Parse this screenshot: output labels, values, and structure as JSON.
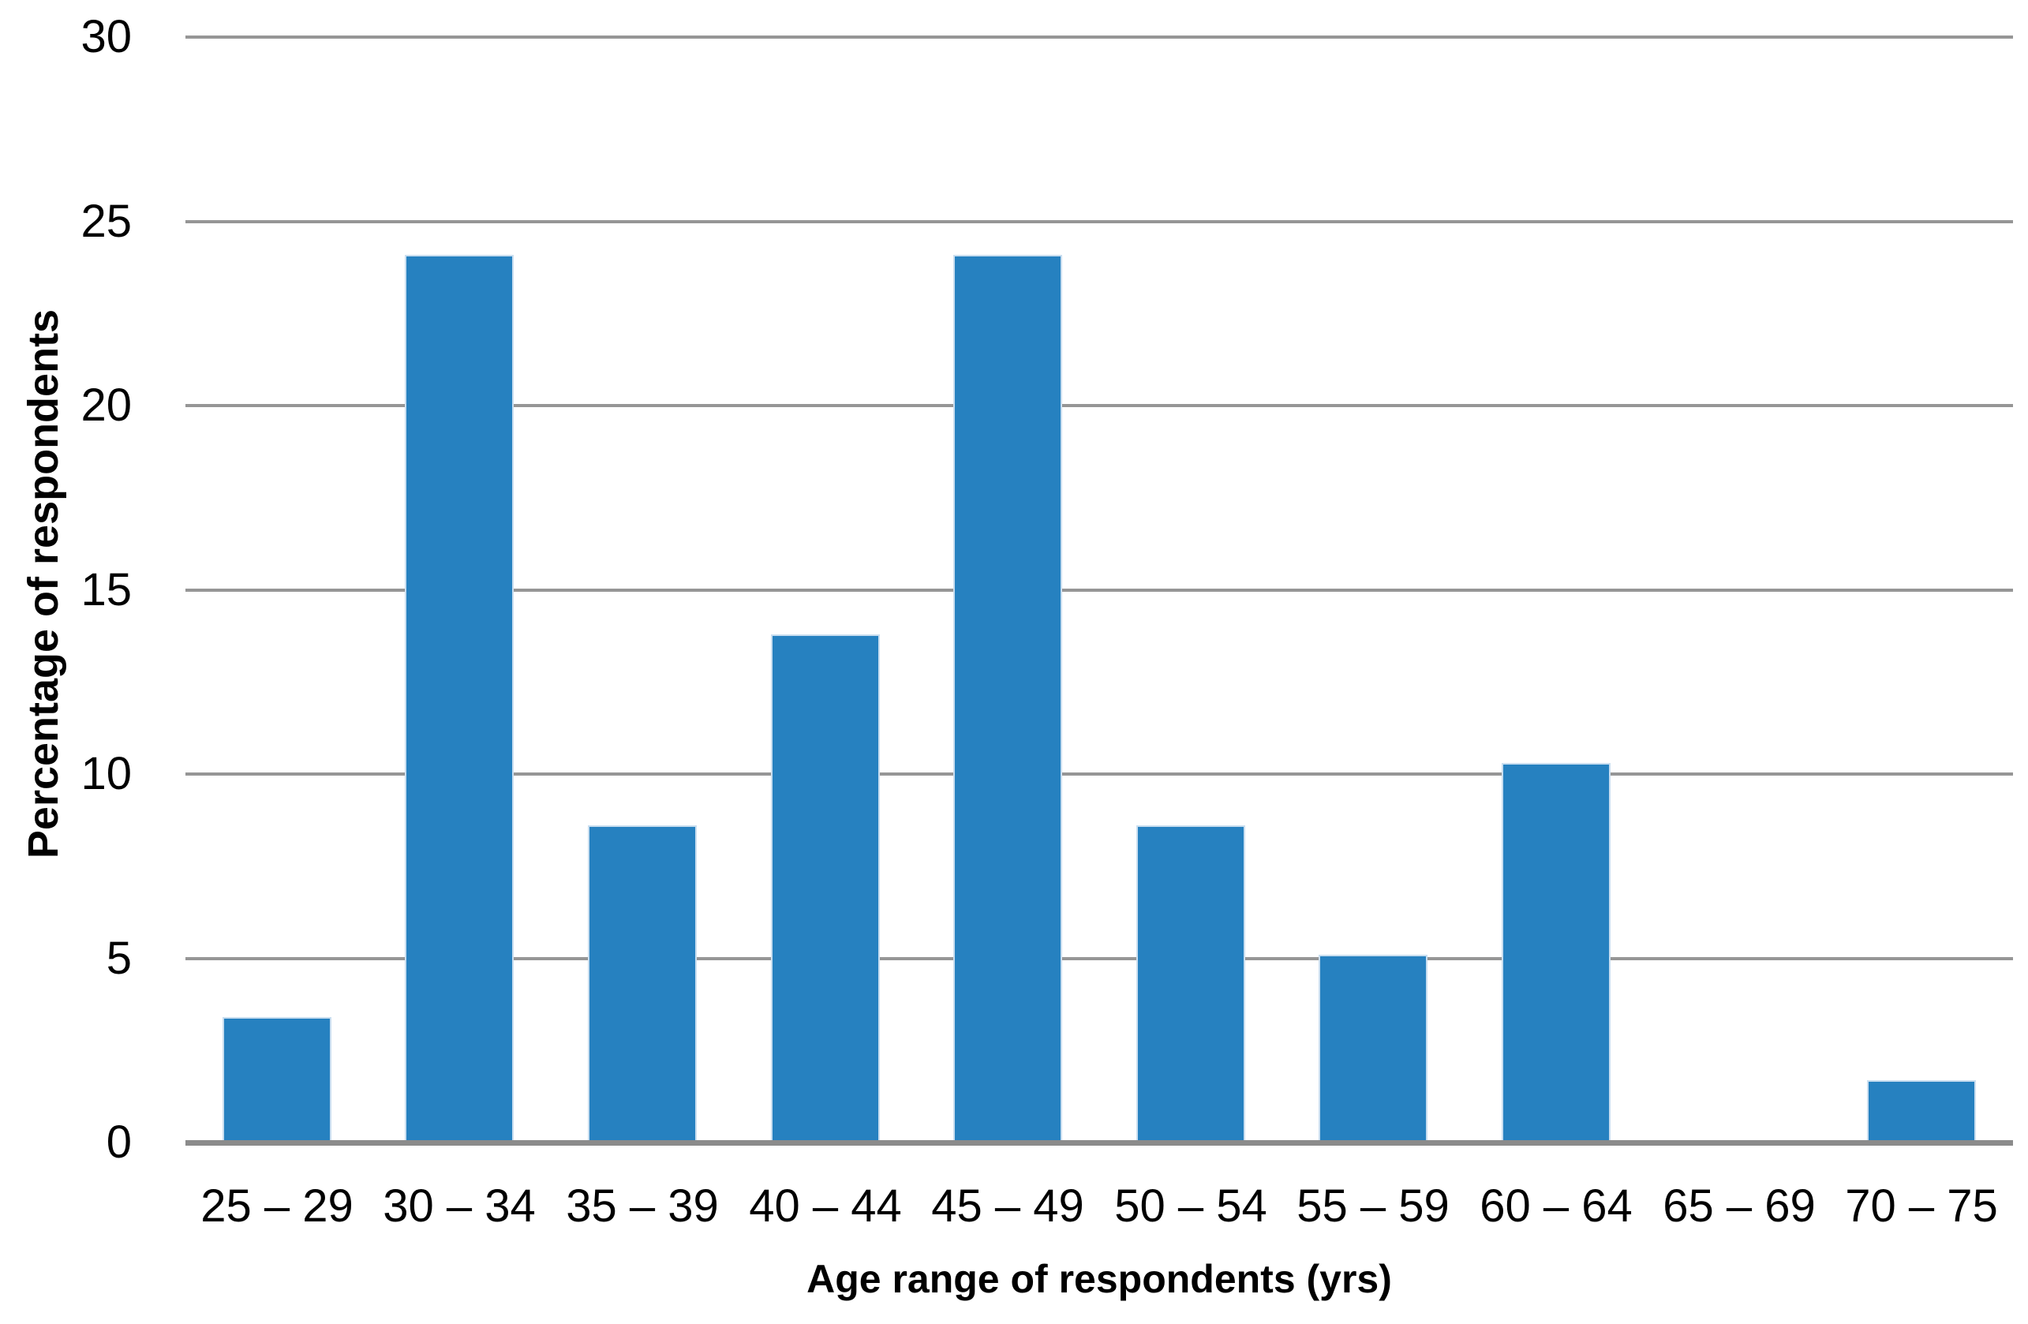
{
  "chart_data": {
    "type": "bar",
    "title": "",
    "xlabel": "Age range of respondents (yrs)",
    "ylabel": "Percentage of respondents",
    "categories": [
      "25 – 29",
      "30 – 34",
      "35 – 39",
      "40 – 44",
      "45 – 49",
      "50 – 54",
      "55 – 59",
      "60 – 64",
      "65 – 69",
      "70 – 75"
    ],
    "values": [
      3.4,
      24.1,
      8.6,
      13.8,
      24.1,
      8.6,
      5.1,
      10.3,
      0,
      1.7
    ],
    "ylim": [
      0,
      30
    ],
    "yticks": [
      0,
      5,
      10,
      15,
      20,
      25,
      30
    ],
    "grid": true,
    "legend": false,
    "bar_color": "#2681C0",
    "gridline_color": "#969696",
    "axis_line_color": "#8B8B8B",
    "text_color": "#000000",
    "background_color": "#FFFFFF"
  }
}
